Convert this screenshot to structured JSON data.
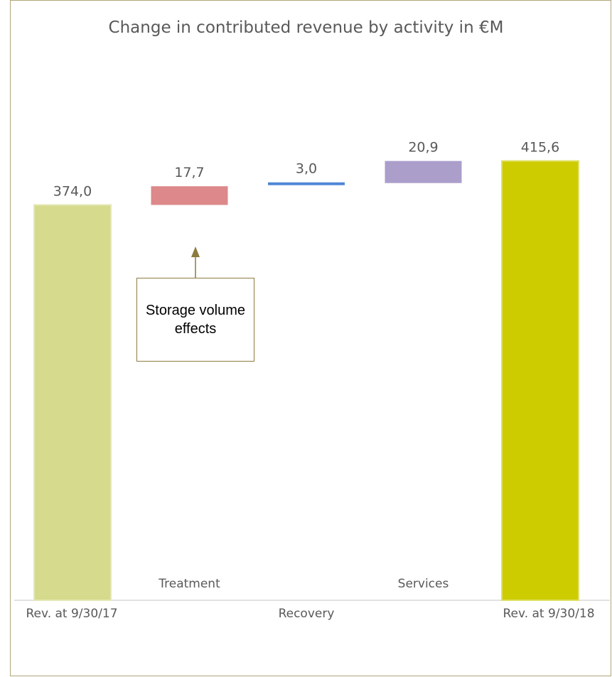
{
  "chart_data": {
    "type": "bar",
    "subtype": "waterfall",
    "title": "Change in contributed revenue by activity in €M",
    "categories": [
      "Rev. at 9/30/17",
      "Treatment",
      "Recovery",
      "Services",
      "Rev. at 9/30/18"
    ],
    "values": [
      374.0,
      17.7,
      3.0,
      20.9,
      415.6
    ],
    "value_labels": [
      "374,0",
      "17,7",
      "3,0",
      "20,9",
      "415,6"
    ],
    "bar_kinds": [
      "total",
      "delta",
      "delta",
      "delta",
      "total"
    ],
    "colors": [
      "#d5da8c",
      "#dd888a",
      "#4f86d6",
      "#ab9ecb",
      "#cccc00"
    ],
    "label_tier": [
      "lower",
      "upper",
      "lower",
      "upper",
      "lower"
    ],
    "xlabel": "",
    "ylabel": "",
    "grid": false,
    "legend": "none"
  },
  "callout": {
    "text": "Storage volume effects",
    "border_color": "#8b7b3e",
    "points_to": "Treatment"
  },
  "colors": {
    "frame_border": "#b0a77a",
    "baseline": "#d9d9d9",
    "text": "#595959",
    "arrow": "#8b7b3e"
  }
}
